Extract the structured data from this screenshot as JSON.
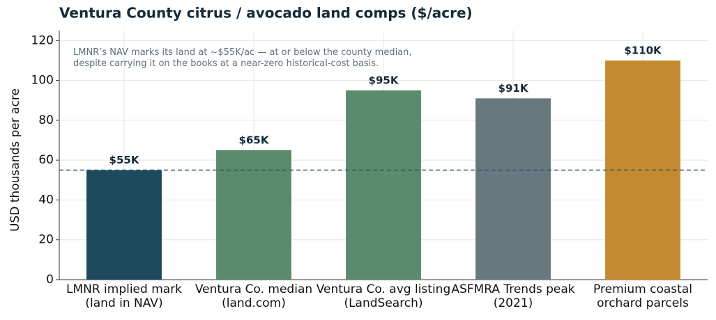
{
  "chart_data": {
    "type": "bar",
    "title": "Ventura County citrus / avocado land comps ($/acre)",
    "y_label": "USD thousands per acre",
    "annotation": [
      "LMNR’s NAV marks its land at ~$55K/ac — at or below the county median,",
      "despite carrying it on the books at a near-zero historical-cost basis."
    ],
    "categories": [
      [
        "LMNR implied mark",
        "(land in NAV)"
      ],
      [
        "Ventura Co. median",
        "(land.com)"
      ],
      [
        "Ventura Co. avg listing",
        "(LandSearch)"
      ],
      [
        "ASFMRA Trends peak",
        "(2021)"
      ],
      [
        "Premium coastal",
        "orchard parcels"
      ]
    ],
    "values": [
      55,
      65,
      95,
      91,
      110
    ],
    "value_labels": [
      "$55K",
      "$65K",
      "$95K",
      "$91K",
      "$110K"
    ],
    "colors": [
      "#1d4a5c",
      "#5a8b6c",
      "#5a8b6c",
      "#67797f",
      "#c48a2f"
    ],
    "reference_line": 55,
    "reference_color": "#2e5a66",
    "ylim": [
      0,
      125
    ],
    "yticks": [
      0,
      20,
      40,
      60,
      80,
      100,
      120
    ],
    "grid": true
  }
}
